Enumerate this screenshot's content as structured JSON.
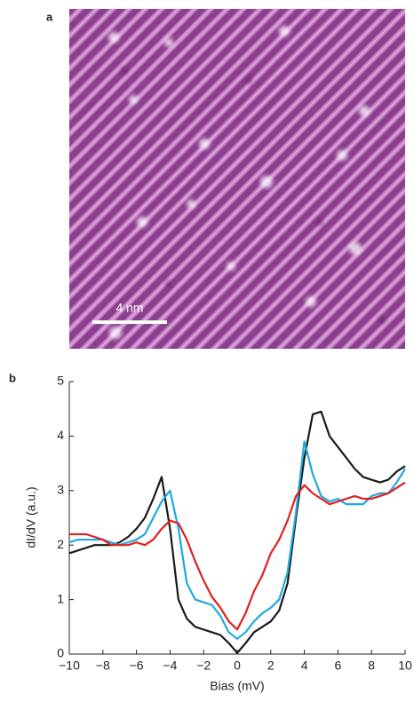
{
  "panel_a": {
    "label": "a",
    "scale_bar": "4 nm"
  },
  "chart_data": {
    "type": "line",
    "panel_label": "b",
    "x_label": "Bias (mV)",
    "y_label": "dI/dV (a.u.)",
    "x": [
      -10,
      -9.5,
      -9,
      -8.5,
      -8,
      -7.5,
      -7,
      -6.5,
      -6,
      -5.5,
      -5,
      -4.5,
      -4,
      -3.5,
      -3,
      -2.5,
      -2,
      -1.5,
      -1,
      -0.5,
      0,
      0.5,
      1,
      1.5,
      2,
      2.5,
      3,
      3.5,
      4,
      4.5,
      5,
      5.5,
      6,
      6.5,
      7,
      7.5,
      8,
      8.5,
      9,
      9.5,
      10
    ],
    "series": [
      {
        "color": "#1a1a1a",
        "values": [
          1.85,
          1.9,
          1.95,
          2.0,
          2.0,
          2.0,
          2.05,
          2.15,
          2.3,
          2.5,
          2.85,
          3.25,
          2.3,
          1.0,
          0.65,
          0.5,
          0.45,
          0.4,
          0.35,
          0.2,
          0.02,
          0.2,
          0.4,
          0.5,
          0.6,
          0.8,
          1.3,
          2.5,
          3.6,
          4.4,
          4.45,
          4.0,
          3.8,
          3.6,
          3.4,
          3.25,
          3.2,
          3.15,
          3.2,
          3.35,
          3.45
        ]
      },
      {
        "color": "#1fa8e0",
        "values": [
          2.05,
          2.1,
          2.1,
          2.1,
          2.1,
          2.05,
          2.0,
          2.05,
          2.1,
          2.2,
          2.5,
          2.8,
          3.0,
          2.3,
          1.3,
          1.0,
          0.95,
          0.9,
          0.7,
          0.4,
          0.28,
          0.4,
          0.6,
          0.75,
          0.85,
          1.0,
          1.5,
          2.6,
          3.9,
          3.3,
          2.9,
          2.8,
          2.85,
          2.75,
          2.75,
          2.75,
          2.9,
          2.95,
          2.95,
          3.15,
          3.4
        ]
      },
      {
        "color": "#e02020",
        "values": [
          2.2,
          2.2,
          2.2,
          2.15,
          2.1,
          2.0,
          2.0,
          2.0,
          2.05,
          2.0,
          2.1,
          2.3,
          2.45,
          2.4,
          2.1,
          1.7,
          1.35,
          1.05,
          0.85,
          0.6,
          0.45,
          0.75,
          1.15,
          1.45,
          1.85,
          2.1,
          2.45,
          2.9,
          3.1,
          2.95,
          2.85,
          2.75,
          2.8,
          2.85,
          2.9,
          2.85,
          2.85,
          2.9,
          2.95,
          3.05,
          3.15
        ]
      }
    ],
    "xlim": [
      -10,
      10
    ],
    "xticks": [
      {
        "value": -10,
        "label": "−10"
      },
      {
        "value": -8,
        "label": "−8"
      },
      {
        "value": -6,
        "label": "−6"
      },
      {
        "value": -4,
        "label": "−4"
      },
      {
        "value": -2,
        "label": "−2"
      },
      0,
      2,
      4,
      6,
      8,
      10
    ],
    "ylim": [
      0,
      5
    ],
    "yticks": [
      0,
      1,
      2,
      3,
      4,
      5
    ]
  }
}
